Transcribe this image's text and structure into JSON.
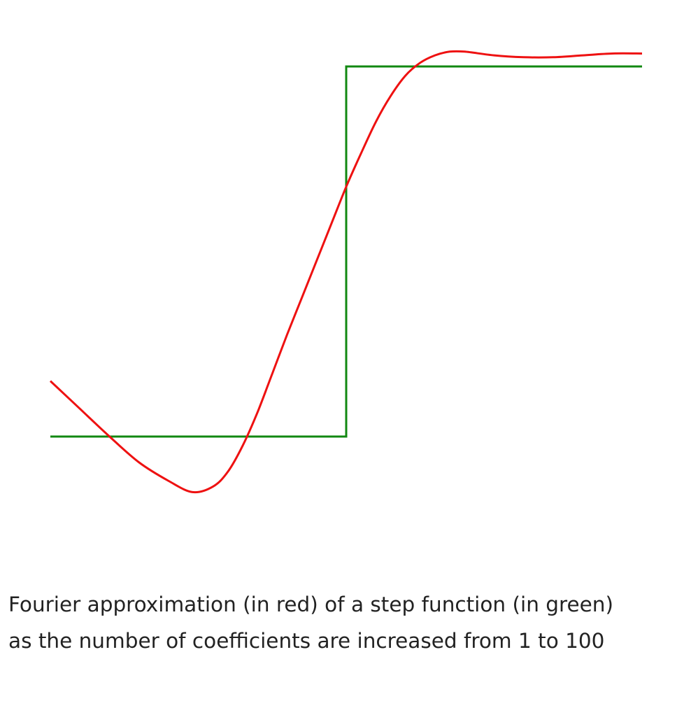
{
  "caption": {
    "line1": "Fourier approximation (in red) of a step function (in green)",
    "line2": "as the number of coefficients are increased from 1 to 100"
  },
  "chart_data": {
    "type": "line",
    "title": "",
    "xlabel": "",
    "ylabel": "",
    "xlim": [
      -1,
      1
    ],
    "ylim": [
      -1.3,
      1.1
    ],
    "grid": false,
    "axes_visible": false,
    "series": [
      {
        "color": "#118811",
        "points": [
          [
            -1,
            -1
          ],
          [
            0,
            -1
          ],
          [
            0,
            1
          ],
          [
            1,
            1
          ]
        ]
      },
      {
        "color": "#ee1111",
        "points": [
          [
            -1.0,
            -0.7
          ],
          [
            -0.9,
            -0.85
          ],
          [
            -0.8,
            -1.0
          ],
          [
            -0.7,
            -1.14
          ],
          [
            -0.6,
            -1.24
          ],
          [
            -0.52,
            -1.3
          ],
          [
            -0.45,
            -1.27
          ],
          [
            -0.4,
            -1.19
          ],
          [
            -0.35,
            -1.05
          ],
          [
            -0.3,
            -0.87
          ],
          [
            -0.25,
            -0.66
          ],
          [
            -0.2,
            -0.45
          ],
          [
            -0.15,
            -0.25
          ],
          [
            -0.1,
            -0.05
          ],
          [
            -0.05,
            0.15
          ],
          [
            0.0,
            0.35
          ],
          [
            0.05,
            0.53
          ],
          [
            0.1,
            0.7
          ],
          [
            0.15,
            0.84
          ],
          [
            0.2,
            0.95
          ],
          [
            0.25,
            1.02
          ],
          [
            0.3,
            1.06
          ],
          [
            0.35,
            1.08
          ],
          [
            0.4,
            1.08
          ],
          [
            0.5,
            1.06
          ],
          [
            0.6,
            1.05
          ],
          [
            0.7,
            1.05
          ],
          [
            0.8,
            1.06
          ],
          [
            0.9,
            1.07
          ],
          [
            1.0,
            1.07
          ]
        ]
      }
    ]
  }
}
